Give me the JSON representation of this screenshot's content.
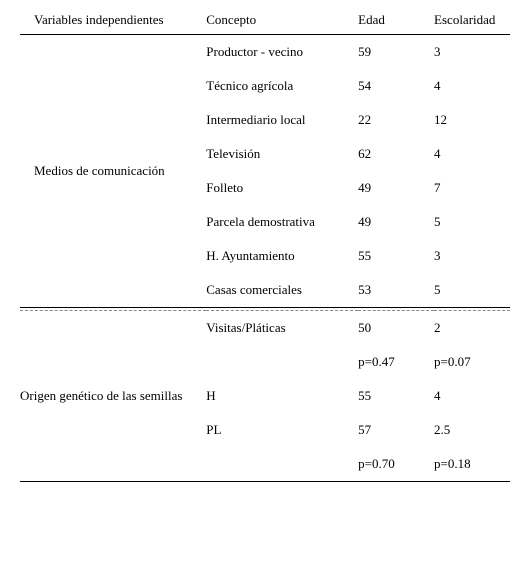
{
  "header": {
    "variables": "Variables independientes",
    "concepto": "Concepto",
    "edad": "Edad",
    "escolaridad": "Escolaridad"
  },
  "section1": {
    "var": "Medios de comunicación",
    "rows": [
      {
        "c": "Productor - vecino",
        "e": "59",
        "s": "3"
      },
      {
        "c": "Técnico agrícola",
        "e": "54",
        "s": "4"
      },
      {
        "c": "Intermediario local",
        "e": "22",
        "s": "12"
      },
      {
        "c": "Televisión",
        "e": "62",
        "s": "4"
      },
      {
        "c": "Folleto",
        "e": "49",
        "s": "7"
      },
      {
        "c": "Parcela demostrativa",
        "e": "49",
        "s": "5"
      },
      {
        "c": "H. Ayuntamiento",
        "e": "55",
        "s": "3"
      },
      {
        "c": "Casas comerciales",
        "e": "53",
        "s": "5"
      }
    ]
  },
  "section2": {
    "var": "Origen genético de las semillas",
    "rows": [
      {
        "c": "Visitas/Pláticas",
        "e": "50",
        "s": "2"
      },
      {
        "c": "",
        "e": "p=0.47",
        "s": "p=0.07"
      },
      {
        "c": "H",
        "e": "55",
        "s": "4"
      },
      {
        "c": "PL",
        "e": "57",
        "s": "2.5"
      },
      {
        "c": "",
        "e": "p=0.70",
        "s": "p=0.18"
      }
    ]
  }
}
